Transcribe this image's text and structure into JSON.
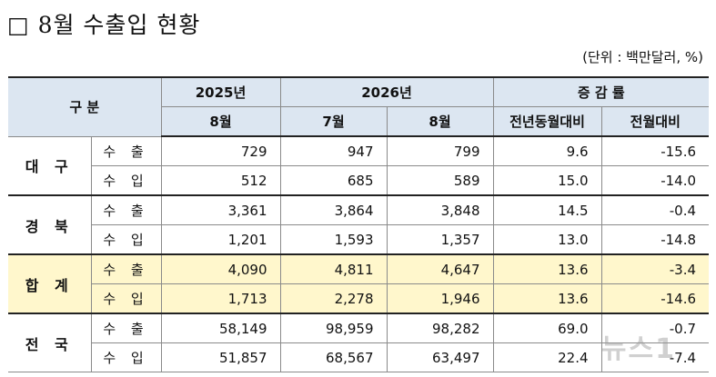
{
  "title": "□ 8월 수출입 현황",
  "unit": "(단위 : 백만달러, %)",
  "header": {
    "division": "구 분",
    "year_2025": "2025년",
    "year_2026": "2026년",
    "rate": "증 감 률",
    "m8_2025": "8월",
    "m7_2026": "7월",
    "m8_2026": "8월",
    "yoy": "전년동월대비",
    "mom": "전월대비"
  },
  "rows": [
    {
      "region": "대 구",
      "export": {
        "label": "수 출",
        "v2025_8": "729",
        "v2026_7": "947",
        "v2026_8": "799",
        "yoy": "9.6",
        "mom": "-15.6"
      },
      "import": {
        "label": "수 입",
        "v2025_8": "512",
        "v2026_7": "685",
        "v2026_8": "589",
        "yoy": "15.0",
        "mom": "-14.0"
      }
    },
    {
      "region": "경 북",
      "export": {
        "label": "수 출",
        "v2025_8": "3,361",
        "v2026_7": "3,864",
        "v2026_8": "3,848",
        "yoy": "14.5",
        "mom": "-0.4"
      },
      "import": {
        "label": "수 입",
        "v2025_8": "1,201",
        "v2026_7": "1,593",
        "v2026_8": "1,357",
        "yoy": "13.0",
        "mom": "-14.8"
      }
    },
    {
      "region": "합 계",
      "export": {
        "label": "수 출",
        "v2025_8": "4,090",
        "v2026_7": "4,811",
        "v2026_8": "4,647",
        "yoy": "13.6",
        "mom": "-3.4"
      },
      "import": {
        "label": "수 입",
        "v2025_8": "1,713",
        "v2026_7": "2,278",
        "v2026_8": "1,946",
        "yoy": "13.6",
        "mom": "-14.6"
      }
    },
    {
      "region": "전 국",
      "export": {
        "label": "수 출",
        "v2025_8": "58,149",
        "v2026_7": "98,959",
        "v2026_8": "98,282",
        "yoy": "69.0",
        "mom": "-0.7"
      },
      "import": {
        "label": "수 입",
        "v2025_8": "51,857",
        "v2026_7": "68,567",
        "v2026_8": "63,497",
        "yoy": "22.4",
        "mom": "-7.4"
      }
    }
  ],
  "watermark": "뉴스1"
}
